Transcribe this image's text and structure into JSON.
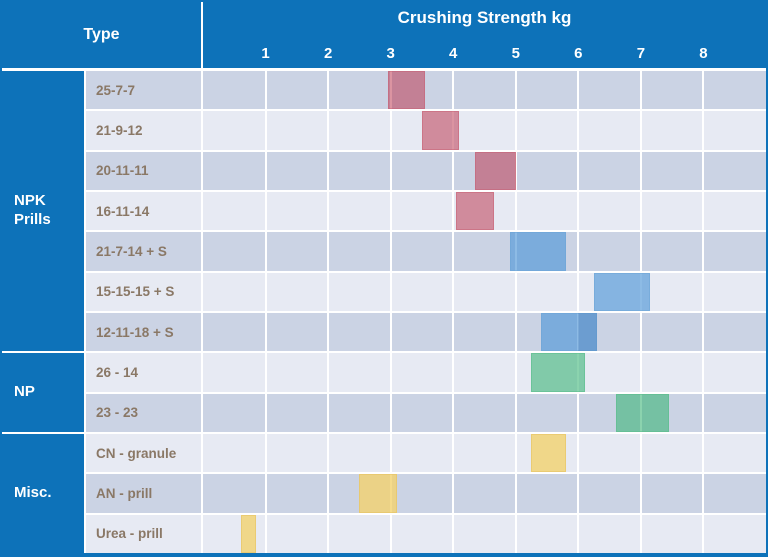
{
  "title_column": {
    "header": "Type"
  },
  "chart": {
    "header": "Crushing Strength kg",
    "ticks": [
      "1",
      "2",
      "3",
      "4",
      "5",
      "6",
      "7",
      "8"
    ],
    "xlim": [
      0,
      9
    ]
  },
  "colors": {
    "primary_blue": "#0d72b9",
    "row_dark": "#cbd3e4",
    "row_light": "#e7eaf3",
    "row_label_text": "#8a7866",
    "header_text": "#ffffff",
    "bar_red": "#c5808f",
    "bar_blue": "#7badda",
    "bar_green": "#80caa8",
    "bar_yellow": "#eed688"
  },
  "chart_data": {
    "type": "bar",
    "orientation": "horizontal-range",
    "title": "Crushing Strength kg",
    "xlabel": "Crushing Strength kg",
    "ylabel": "Type",
    "xlim": [
      0,
      9
    ],
    "x_ticks": [
      1,
      2,
      3,
      4,
      5,
      6,
      7,
      8
    ],
    "grid": true,
    "groups": [
      {
        "label": "NPK Prills",
        "rows": [
          {
            "label": "25-7-7",
            "color": "red",
            "ranges": [
              [
                2.95,
                3.55
              ]
            ]
          },
          {
            "label": "21-9-12",
            "color": "red",
            "ranges": [
              [
                3.5,
                4.1
              ]
            ]
          },
          {
            "label": "20-11-11",
            "color": "red",
            "ranges": [
              [
                4.35,
                5.0
              ]
            ]
          },
          {
            "label": "16-11-14",
            "color": "red",
            "ranges": [
              [
                4.05,
                4.65
              ]
            ]
          },
          {
            "label": "21-7-14 + S",
            "color": "blue",
            "ranges": [
              [
                4.9,
                5.8
              ]
            ]
          },
          {
            "label": "15-15-15 + S",
            "color": "blue",
            "ranges": [
              [
                6.25,
                7.15
              ]
            ]
          },
          {
            "label": "12-11-18 + S",
            "color": "blue",
            "ranges": [
              [
                5.4,
                6.3
              ],
              [
                6.0,
                6.3
              ]
            ]
          }
        ]
      },
      {
        "label": "NP",
        "rows": [
          {
            "label": "26 - 14",
            "color": "green",
            "ranges": [
              [
                5.25,
                6.1
              ]
            ]
          },
          {
            "label": "23 - 23",
            "color": "green",
            "ranges": [
              [
                6.6,
                7.45
              ]
            ]
          }
        ]
      },
      {
        "label": "Misc.",
        "rows": [
          {
            "label": "CN - granule",
            "color": "yellow",
            "ranges": [
              [
                5.25,
                5.8
              ]
            ]
          },
          {
            "label": "AN - prill",
            "color": "yellow",
            "ranges": [
              [
                2.5,
                3.1
              ]
            ]
          },
          {
            "label": "Urea - prill",
            "color": "yellow",
            "ranges": [
              [
                0.6,
                0.85
              ]
            ]
          }
        ]
      }
    ]
  }
}
